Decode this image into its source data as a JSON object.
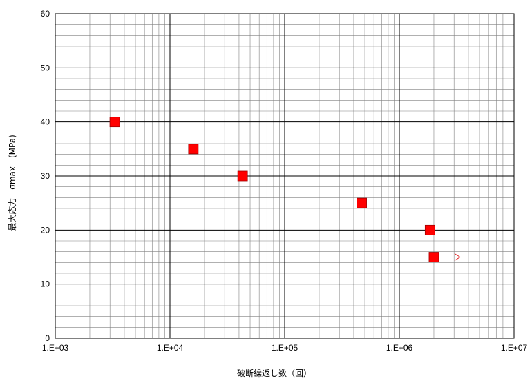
{
  "colors": {
    "marker": "#ff0000",
    "marker_stroke": "#a00000",
    "arrow": "#e02020",
    "major_grid": "#000000",
    "minor_grid": "#808080"
  },
  "chart_data": {
    "type": "scatter",
    "title": "",
    "xlabel": "破断繰返し数（回）",
    "ylabel": "最大応力　σmax　(MPa)",
    "xscale": "log",
    "xlim": [
      1000,
      10000000
    ],
    "ylim": [
      0,
      60
    ],
    "x_tick_values": [
      1000,
      10000,
      100000,
      1000000,
      10000000
    ],
    "x_tick_labels": [
      "1.E+03",
      "1.E+04",
      "1.E+05",
      "1.E+06",
      "1.E+07"
    ],
    "y_ticks": [
      0,
      10,
      20,
      30,
      40,
      50,
      60
    ],
    "y_minor_step": 2,
    "grid": true,
    "legend": "none",
    "marker": "filled-square",
    "points": [
      {
        "x": 3300,
        "y": 40
      },
      {
        "x": 16000,
        "y": 35
      },
      {
        "x": 43000,
        "y": 30
      },
      {
        "x": 470000,
        "y": 25
      },
      {
        "x": 1850000,
        "y": 20
      },
      {
        "x": 2000000,
        "y": 15,
        "runout": true
      }
    ]
  }
}
